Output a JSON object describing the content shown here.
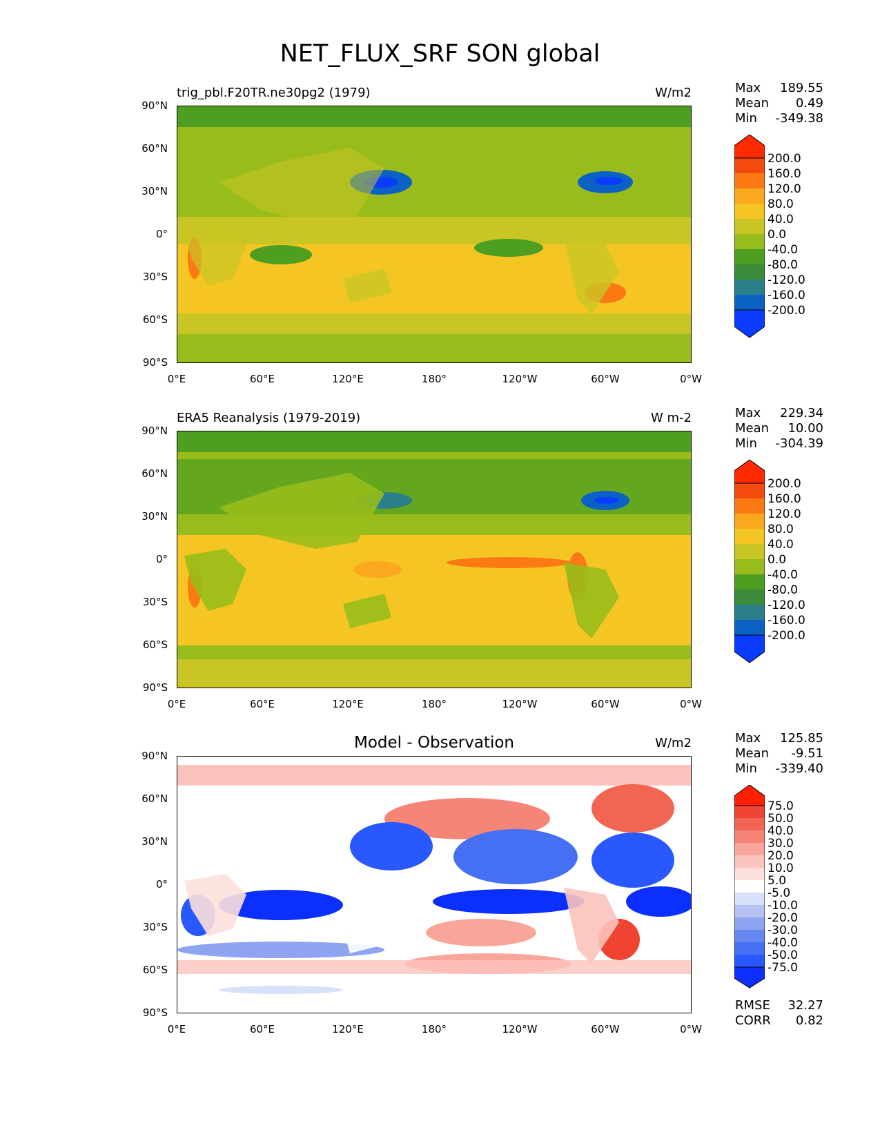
{
  "title": "NET_FLUX_SRF SON global",
  "x_ticks": [
    "0°E",
    "60°E",
    "120°E",
    "180°",
    "120°W",
    "60°W",
    "0°W"
  ],
  "y_ticks": [
    "90°N",
    "60°N",
    "30°N",
    "0°",
    "30°S",
    "60°S",
    "90°S"
  ],
  "panels": [
    {
      "title": "trig_pbl.F20TR.ne30pg2 (1979)",
      "units": "W/m2",
      "stats": {
        "max_label": "Max",
        "max": "189.55",
        "mean_label": "Mean",
        "mean": "0.49",
        "min_label": "Min",
        "min": "-349.38"
      },
      "colorbar": [
        "200.0",
        "160.0",
        "120.0",
        "80.0",
        "40.0",
        "0.0",
        "-40.0",
        "-80.0",
        "-120.0",
        "-160.0",
        "-200.0"
      ]
    },
    {
      "title": "ERA5 Reanalysis (1979-2019)",
      "units": "W m-2",
      "stats": {
        "max_label": "Max",
        "max": "229.34",
        "mean_label": "Mean",
        "mean": "10.00",
        "min_label": "Min",
        "min": "-304.39"
      },
      "colorbar": [
        "200.0",
        "160.0",
        "120.0",
        "80.0",
        "40.0",
        "0.0",
        "-40.0",
        "-80.0",
        "-120.0",
        "-160.0",
        "-200.0"
      ]
    },
    {
      "title": "Model - Observation",
      "units": "W/m2",
      "stats": {
        "max_label": "Max",
        "max": "125.85",
        "mean_label": "Mean",
        "mean": "-9.51",
        "min_label": "Min",
        "min": "-339.40"
      },
      "colorbar": [
        "75.0",
        "50.0",
        "40.0",
        "30.0",
        "20.0",
        "10.0",
        "5.0",
        "-5.0",
        "-10.0",
        "-20.0",
        "-30.0",
        "-40.0",
        "-50.0",
        "-75.0"
      ],
      "rmse_label": "RMSE",
      "rmse": "32.27",
      "corr_label": "CORR",
      "corr": "0.82"
    }
  ],
  "chart_data": [
    {
      "type": "heatmap",
      "title": "trig_pbl.F20TR.ne30pg2 (1979)",
      "units": "W/m2",
      "x_ticks": [
        "0°E",
        "60°E",
        "120°E",
        "180°",
        "120°W",
        "60°W",
        "0°W"
      ],
      "y_ticks": [
        "90°N",
        "60°N",
        "30°N",
        "0°",
        "30°S",
        "60°S",
        "90°S"
      ],
      "levels": [
        -200,
        -160,
        -120,
        -80,
        -40,
        0,
        40,
        80,
        120,
        160,
        200
      ],
      "colors": [
        "#0a3cff",
        "#0b62c4",
        "#2a7f8a",
        "#3a8c3a",
        "#4e9e21",
        "#98bc1b",
        "#c9c524",
        "#f4c523",
        "#fca81f",
        "#fb7a13",
        "#f44a0e",
        "#ff2a00"
      ],
      "max": 189.55,
      "mean": 0.49,
      "min": -349.38
    },
    {
      "type": "heatmap",
      "title": "ERA5 Reanalysis (1979-2019)",
      "units": "W m-2",
      "x_ticks": [
        "0°E",
        "60°E",
        "120°E",
        "180°",
        "120°W",
        "60°W",
        "0°W"
      ],
      "y_ticks": [
        "90°N",
        "60°N",
        "30°N",
        "0°",
        "30°S",
        "60°S",
        "90°S"
      ],
      "levels": [
        -200,
        -160,
        -120,
        -80,
        -40,
        0,
        40,
        80,
        120,
        160,
        200
      ],
      "colors": [
        "#0a3cff",
        "#0b62c4",
        "#2a7f8a",
        "#3a8c3a",
        "#4e9e21",
        "#98bc1b",
        "#c9c524",
        "#f4c523",
        "#fca81f",
        "#fb7a13",
        "#f44a0e",
        "#ff2a00"
      ],
      "max": 229.34,
      "mean": 10.0,
      "min": -304.39
    },
    {
      "type": "heatmap",
      "title": "Model - Observation",
      "units": "W/m2",
      "x_ticks": [
        "0°E",
        "60°E",
        "120°E",
        "180°",
        "120°W",
        "60°W",
        "0°W"
      ],
      "y_ticks": [
        "90°N",
        "60°N",
        "30°N",
        "0°",
        "30°S",
        "60°S",
        "90°S"
      ],
      "levels": [
        -75,
        -50,
        -40,
        -30,
        -20,
        -10,
        -5,
        5,
        10,
        20,
        30,
        40,
        50,
        75
      ],
      "colors": [
        "#0b2fff",
        "#2a58ff",
        "#4670f3",
        "#6686f0",
        "#8ea4f0",
        "#b3c1f3",
        "#d9e0f9",
        "#ffffff",
        "#fde0dc",
        "#fbc3bb",
        "#f8a59a",
        "#f58577",
        "#f26553",
        "#ee4431",
        "#ff2000"
      ],
      "max": 125.85,
      "mean": -9.51,
      "min": -339.4,
      "rmse": 32.27,
      "corr": 0.82
    }
  ]
}
